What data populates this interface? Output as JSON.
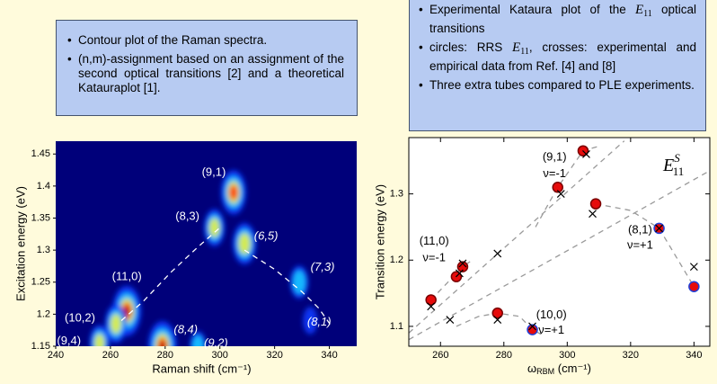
{
  "left_box": {
    "bullets": [
      [
        {
          "text": "Contour plot of the Raman spectra."
        }
      ],
      [
        {
          "text": "(n,m)-assignment based on an assignment of the second optical transitions [2] and a theoretical Katauraplot [1]."
        }
      ]
    ]
  },
  "right_box": {
    "bullets": [
      [
        {
          "text": "Experimental Kataura plot of the "
        },
        {
          "math": "E",
          "sub": "11"
        },
        {
          "text": " optical transitions"
        }
      ],
      [
        {
          "text": "circles: RRS "
        },
        {
          "math": "E",
          "sub": "11"
        },
        {
          "text": ", crosses: experimental and empirical data from Ref. [4] and [8]"
        }
      ],
      [
        {
          "text": "Three extra tubes compared to PLE experi­ments."
        }
      ]
    ]
  },
  "chart_data": [
    {
      "type": "contour",
      "xlabel": "Raman shift (cm⁻¹)",
      "ylabel": "Excitation energy (eV)",
      "xlim": [
        240,
        350
      ],
      "ylim": [
        1.15,
        1.47
      ],
      "xticks": [
        240,
        260,
        280,
        300,
        320,
        340
      ],
      "yticks": [
        1.15,
        1.2,
        1.25,
        1.3,
        1.35,
        1.4,
        1.45
      ],
      "background": "#00007a",
      "peaks": [
        {
          "label": "(9,1)",
          "x": 305,
          "y": 1.39,
          "intensity": 0.8
        },
        {
          "label": "(8,3)",
          "x": 298,
          "y": 1.335,
          "intensity": 0.55
        },
        {
          "label": "(6,5)",
          "x": 309,
          "y": 1.31,
          "intensity": 0.7
        },
        {
          "label": "(7,3)",
          "x": 329,
          "y": 1.25,
          "intensity": 0.4
        },
        {
          "label": "(11,0)",
          "x": 266,
          "y": 1.205,
          "intensity": 1.0
        },
        {
          "label": "(10,2)",
          "x": 262,
          "y": 1.185,
          "intensity": 0.6
        },
        {
          "label": "(9,4)",
          "x": 256,
          "y": 1.155,
          "intensity": 0.5
        },
        {
          "label": "(8,4)",
          "x": 279,
          "y": 1.15,
          "intensity": 1.0
        },
        {
          "label": "(9,2)",
          "x": 292,
          "y": 1.15,
          "intensity": 0.3
        },
        {
          "label": "(8,1)",
          "x": 333,
          "y": 1.19,
          "intensity": 0.2
        }
      ],
      "guides": [
        {
          "x": [
            264,
            272,
            282,
            292,
            300
          ],
          "y": [
            1.19,
            1.22,
            1.265,
            1.305,
            1.335
          ]
        },
        {
          "x": [
            309,
            320,
            330,
            336,
            341
          ],
          "y": [
            1.3,
            1.27,
            1.235,
            1.21,
            1.18
          ]
        }
      ]
    },
    {
      "type": "scatter",
      "xlabel": {
        "symbol": "ω",
        "sub": "RBM",
        "unit": " (cm⁻¹)"
      },
      "ylabel": "Transition energy (eV)",
      "xlim": [
        250,
        345
      ],
      "ylim": [
        1.07,
        1.385
      ],
      "xticks": [
        260,
        280,
        300,
        320,
        340
      ],
      "yticks": [
        1.1,
        1.2,
        1.3
      ],
      "series": [
        {
          "marker": "circle",
          "color": "#e60b0b",
          "x": [
            257,
            265,
            267,
            278,
            289,
            297,
            305,
            309,
            329,
            340
          ],
          "y": [
            1.14,
            1.175,
            1.19,
            1.12,
            1.095,
            1.31,
            1.365,
            1.285,
            1.248,
            1.16
          ],
          "edge_colors": [
            "#7a0000",
            "#7a0000",
            "#7a0000",
            "#7a0000",
            "#1f3fd8",
            "#7a0000",
            "#7a0000",
            "#7a0000",
            "#1f3fd8",
            "#1f3fd8"
          ]
        },
        {
          "marker": "cross",
          "color": "#000000",
          "x": [
            257,
            263,
            266,
            267,
            278,
            278,
            289,
            298,
            306,
            308,
            329,
            340
          ],
          "y": [
            1.13,
            1.11,
            1.18,
            1.195,
            1.21,
            1.11,
            1.1,
            1.3,
            1.36,
            1.27,
            1.248,
            1.19
          ]
        }
      ],
      "guides": [
        {
          "x": [
            250,
            318
          ],
          "y": [
            1.09,
            1.38
          ]
        },
        {
          "x": [
            250,
            345
          ],
          "y": [
            1.08,
            1.335
          ]
        },
        {
          "x": [
            257,
            262,
            267,
            270
          ],
          "y": [
            1.14,
            1.165,
            1.19,
            1.2
          ]
        },
        {
          "x": [
            265,
            272,
            278,
            285,
            289,
            293
          ],
          "y": [
            1.1,
            1.115,
            1.12,
            1.115,
            1.095,
            1.085
          ]
        },
        {
          "x": [
            290,
            297,
            305,
            310
          ],
          "y": [
            1.25,
            1.31,
            1.365,
            1.372
          ]
        },
        {
          "x": [
            309,
            320,
            329,
            335,
            340
          ],
          "y": [
            1.285,
            1.275,
            1.248,
            1.2,
            1.16
          ]
        }
      ],
      "annotations": [
        "(9,1)",
        "ν=-1",
        "(11,0)",
        "ν=-1",
        "(8,1)",
        "ν=+1",
        "(10,0)",
        "ν=+1"
      ],
      "branch_label": {
        "math": "E",
        "sup": "S",
        "sub": "11"
      }
    }
  ]
}
